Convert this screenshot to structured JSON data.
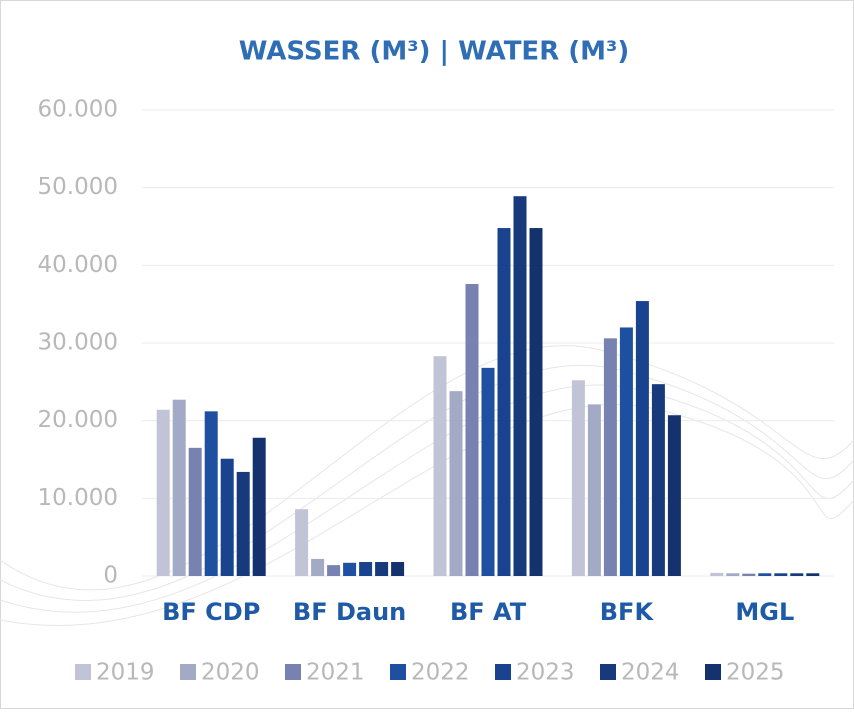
{
  "chart_data": {
    "type": "bar",
    "title": "WASSER (M³) | WATER (M³)",
    "categories": [
      "BF CDP",
      "BF Daun",
      "BF AT",
      "BFK",
      "MGL"
    ],
    "series": [
      {
        "name": "2019",
        "color": "#c0c4d6",
        "values": [
          21400,
          8600,
          28300,
          25200,
          400
        ]
      },
      {
        "name": "2020",
        "color": "#a3aac6",
        "values": [
          22700,
          2200,
          23800,
          22100,
          350
        ]
      },
      {
        "name": "2021",
        "color": "#7782b0",
        "values": [
          16500,
          1400,
          37600,
          30600,
          300
        ]
      },
      {
        "name": "2022",
        "color": "#1f4fa0",
        "values": [
          21200,
          1700,
          26800,
          32000,
          350
        ]
      },
      {
        "name": "2023",
        "color": "#1a438f",
        "values": [
          15100,
          1800,
          44800,
          35400,
          350
        ]
      },
      {
        "name": "2024",
        "color": "#163a7c",
        "values": [
          13400,
          1800,
          48900,
          24700,
          350
        ]
      },
      {
        "name": "2025",
        "color": "#14336e",
        "values": [
          17800,
          1800,
          44800,
          20700,
          350
        ]
      }
    ],
    "ylim": [
      0,
      60000
    ],
    "yticks": [
      0,
      {
        "value": 10000,
        "label": "10.000"
      },
      {
        "value": 20000,
        "label": "20.000"
      },
      {
        "value": 30000,
        "label": "30.000"
      },
      {
        "value": 40000,
        "label": "40.000"
      },
      {
        "value": 50000,
        "label": "50.000"
      },
      {
        "value": 60000,
        "label": "60.000"
      }
    ],
    "grid": true
  }
}
